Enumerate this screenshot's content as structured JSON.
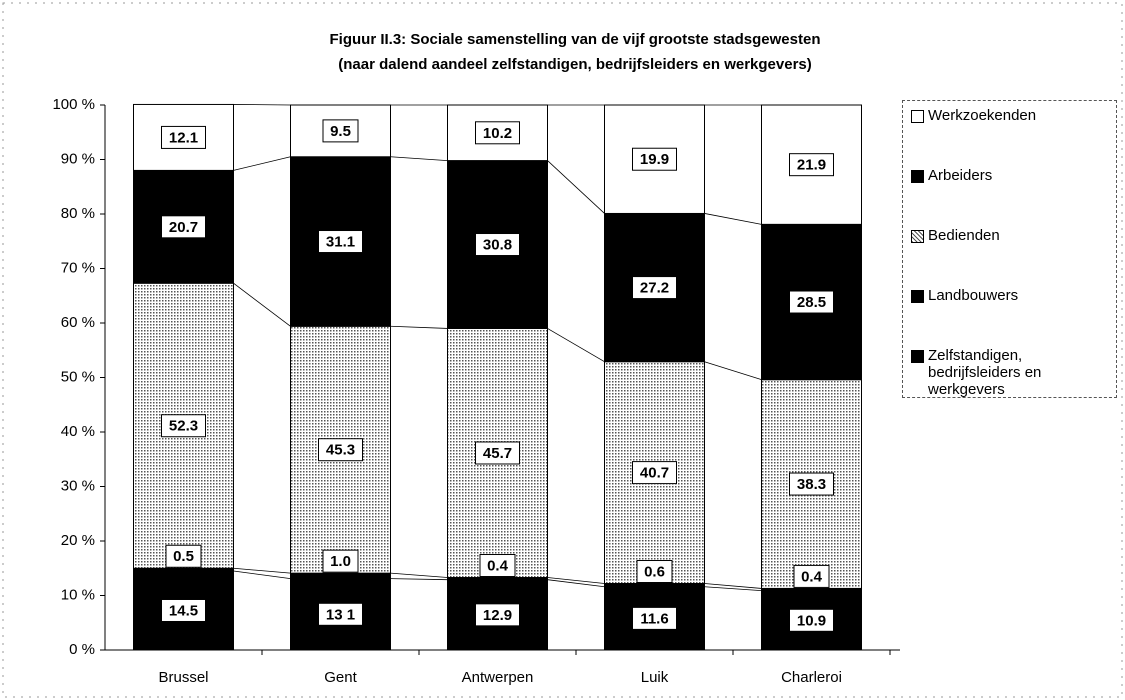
{
  "chart_data": {
    "type": "stacked_bar",
    "title": "Figuur II.3: Sociale samenstelling van de vijf grootste stadsgewesten",
    "subtitle": "(naar dalend aandeel zelfstandigen, bedrijfsleiders en werkgevers)",
    "categories": [
      "Brussel",
      "Gent",
      "Antwerpen",
      "Luik",
      "Charleroi"
    ],
    "series": [
      {
        "name": "Zelfstandigen, bedrijfsleiders en werkgevers",
        "color": "#000000",
        "values": [
          14.5,
          13.1,
          12.9,
          11.6,
          10.9
        ],
        "value_labels": [
          "14.5",
          "13 1",
          "12.9",
          "11.6",
          "10.9"
        ]
      },
      {
        "name": "Landbouwers",
        "color": "#000000",
        "values": [
          0.5,
          1.0,
          0.4,
          0.6,
          0.4
        ],
        "value_labels": [
          "0.5",
          "1.0",
          "0.4",
          "0.6",
          "0.4"
        ]
      },
      {
        "name": "Bedienden",
        "color": "#b8b8b8",
        "values": [
          52.3,
          45.3,
          45.7,
          40.7,
          38.3
        ],
        "value_labels": [
          "52.3",
          "45.3",
          "45.7",
          "40.7",
          "38.3"
        ]
      },
      {
        "name": "Arbeiders",
        "color": "#000000",
        "values": [
          20.7,
          31.1,
          30.8,
          27.2,
          28.5
        ],
        "value_labels": [
          "20.7",
          "31.1",
          "30.8",
          "27.2",
          "28.5"
        ]
      },
      {
        "name": "Werkzoekenden",
        "color": "#ffffff",
        "values": [
          12.1,
          9.5,
          10.2,
          19.9,
          21.9
        ],
        "value_labels": [
          "12.1",
          "9.5",
          "10.2",
          "19.9",
          "21.9"
        ]
      }
    ],
    "ylim": [
      0,
      100
    ],
    "yticks": [
      {
        "value": 0,
        "label": "0 %"
      },
      {
        "value": 10,
        "label": "10 %"
      },
      {
        "value": 20,
        "label": "20 %"
      },
      {
        "value": 30,
        "label": "30 %"
      },
      {
        "value": 40,
        "label": "40 %"
      },
      {
        "value": 50,
        "label": "50 %"
      },
      {
        "value": 60,
        "label": "60 %"
      },
      {
        "value": 70,
        "label": "70 %"
      },
      {
        "value": 80,
        "label": "80 %"
      },
      {
        "value": 90,
        "label": "90 %"
      },
      {
        "value": 100,
        "label": "100 %"
      }
    ],
    "legend": "right"
  }
}
